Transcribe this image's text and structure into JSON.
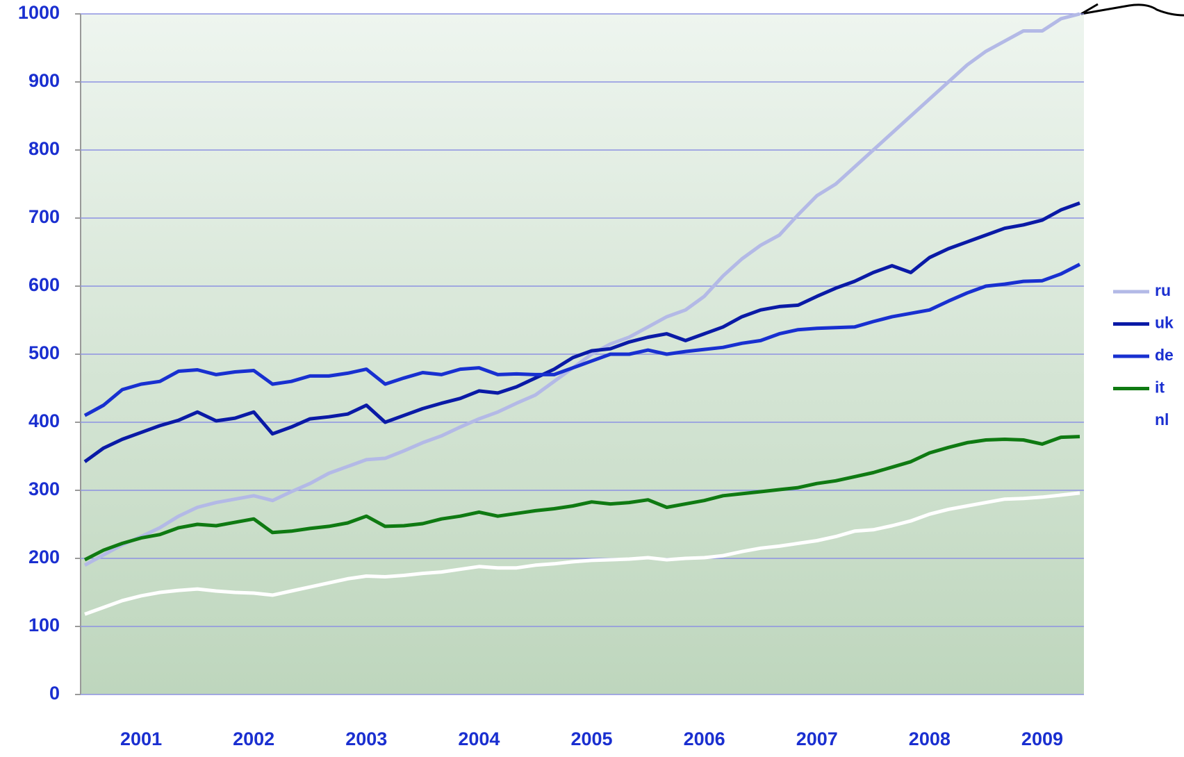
{
  "chart_data": {
    "type": "line",
    "categories": [
      null,
      null,
      null,
      "2001",
      null,
      null,
      null,
      null,
      null,
      "2002",
      null,
      null,
      null,
      null,
      null,
      "2003",
      null,
      null,
      null,
      null,
      null,
      "2004",
      null,
      null,
      null,
      null,
      null,
      "2005",
      null,
      null,
      null,
      null,
      null,
      "2006",
      null,
      null,
      null,
      null,
      null,
      "2007",
      null,
      null,
      null,
      null,
      null,
      "2008",
      null,
      null,
      null,
      null,
      null,
      "2009",
      null,
      null
    ],
    "series": [
      {
        "name": "ru",
        "color": "#b3b9e6",
        "values": [
          190,
          205,
          220,
          232,
          245,
          262,
          275,
          282,
          287,
          292,
          285,
          298,
          310,
          325,
          335,
          345,
          347,
          358,
          370,
          380,
          393,
          405,
          415,
          428,
          440,
          460,
          480,
          500,
          515,
          525,
          540,
          555,
          565,
          585,
          615,
          640,
          660,
          675,
          705,
          733,
          750,
          775,
          800,
          825,
          850,
          875,
          900,
          925,
          945,
          960,
          975,
          975,
          993,
          1000
        ]
      },
      {
        "name": "uk",
        "color": "#0a1aa6",
        "values": [
          342,
          362,
          375,
          385,
          395,
          403,
          415,
          402,
          406,
          415,
          383,
          393,
          405,
          408,
          412,
          425,
          400,
          410,
          420,
          428,
          435,
          446,
          443,
          452,
          465,
          478,
          495,
          505,
          508,
          518,
          525,
          530,
          520,
          530,
          540,
          555,
          565,
          570,
          572,
          585,
          597,
          607,
          620,
          630,
          620,
          642,
          655,
          665,
          675,
          685,
          690,
          697,
          712,
          722
        ]
      },
      {
        "name": "de",
        "color": "#1830d0",
        "values": [
          410,
          425,
          448,
          456,
          460,
          475,
          477,
          470,
          474,
          476,
          456,
          460,
          468,
          468,
          472,
          478,
          456,
          465,
          473,
          470,
          478,
          480,
          470,
          471,
          470,
          470,
          480,
          490,
          500,
          500,
          506,
          500,
          504,
          507,
          510,
          516,
          520,
          530,
          536,
          538,
          539,
          540,
          548,
          555,
          560,
          565,
          578,
          590,
          600,
          603,
          607,
          608,
          618,
          632
        ]
      },
      {
        "name": "it",
        "color": "#0f7a12",
        "values": [
          198,
          212,
          222,
          230,
          235,
          245,
          250,
          248,
          253,
          258,
          238,
          240,
          244,
          247,
          252,
          262,
          247,
          248,
          251,
          258,
          262,
          268,
          262,
          266,
          270,
          273,
          277,
          283,
          280,
          282,
          286,
          275,
          280,
          285,
          292,
          295,
          298,
          301,
          304,
          310,
          314,
          320,
          326,
          334,
          342,
          355,
          363,
          370,
          374,
          375,
          374,
          368,
          378,
          379
        ]
      },
      {
        "name": "nl",
        "color": "#ffffff",
        "values": [
          118,
          128,
          138,
          145,
          150,
          153,
          155,
          152,
          150,
          149,
          146,
          152,
          158,
          164,
          170,
          174,
          173,
          175,
          178,
          180,
          184,
          188,
          186,
          186,
          190,
          192,
          195,
          197,
          198,
          199,
          201,
          198,
          200,
          201,
          204,
          210,
          215,
          218,
          222,
          226,
          232,
          240,
          242,
          248,
          255,
          265,
          272,
          277,
          282,
          287,
          288,
          290,
          293,
          296
        ]
      }
    ],
    "ylim": [
      0,
      1000
    ],
    "yticks": [
      0,
      100,
      200,
      300,
      400,
      500,
      600,
      700,
      800,
      900,
      1000
    ],
    "grid": true,
    "legend": "right"
  }
}
